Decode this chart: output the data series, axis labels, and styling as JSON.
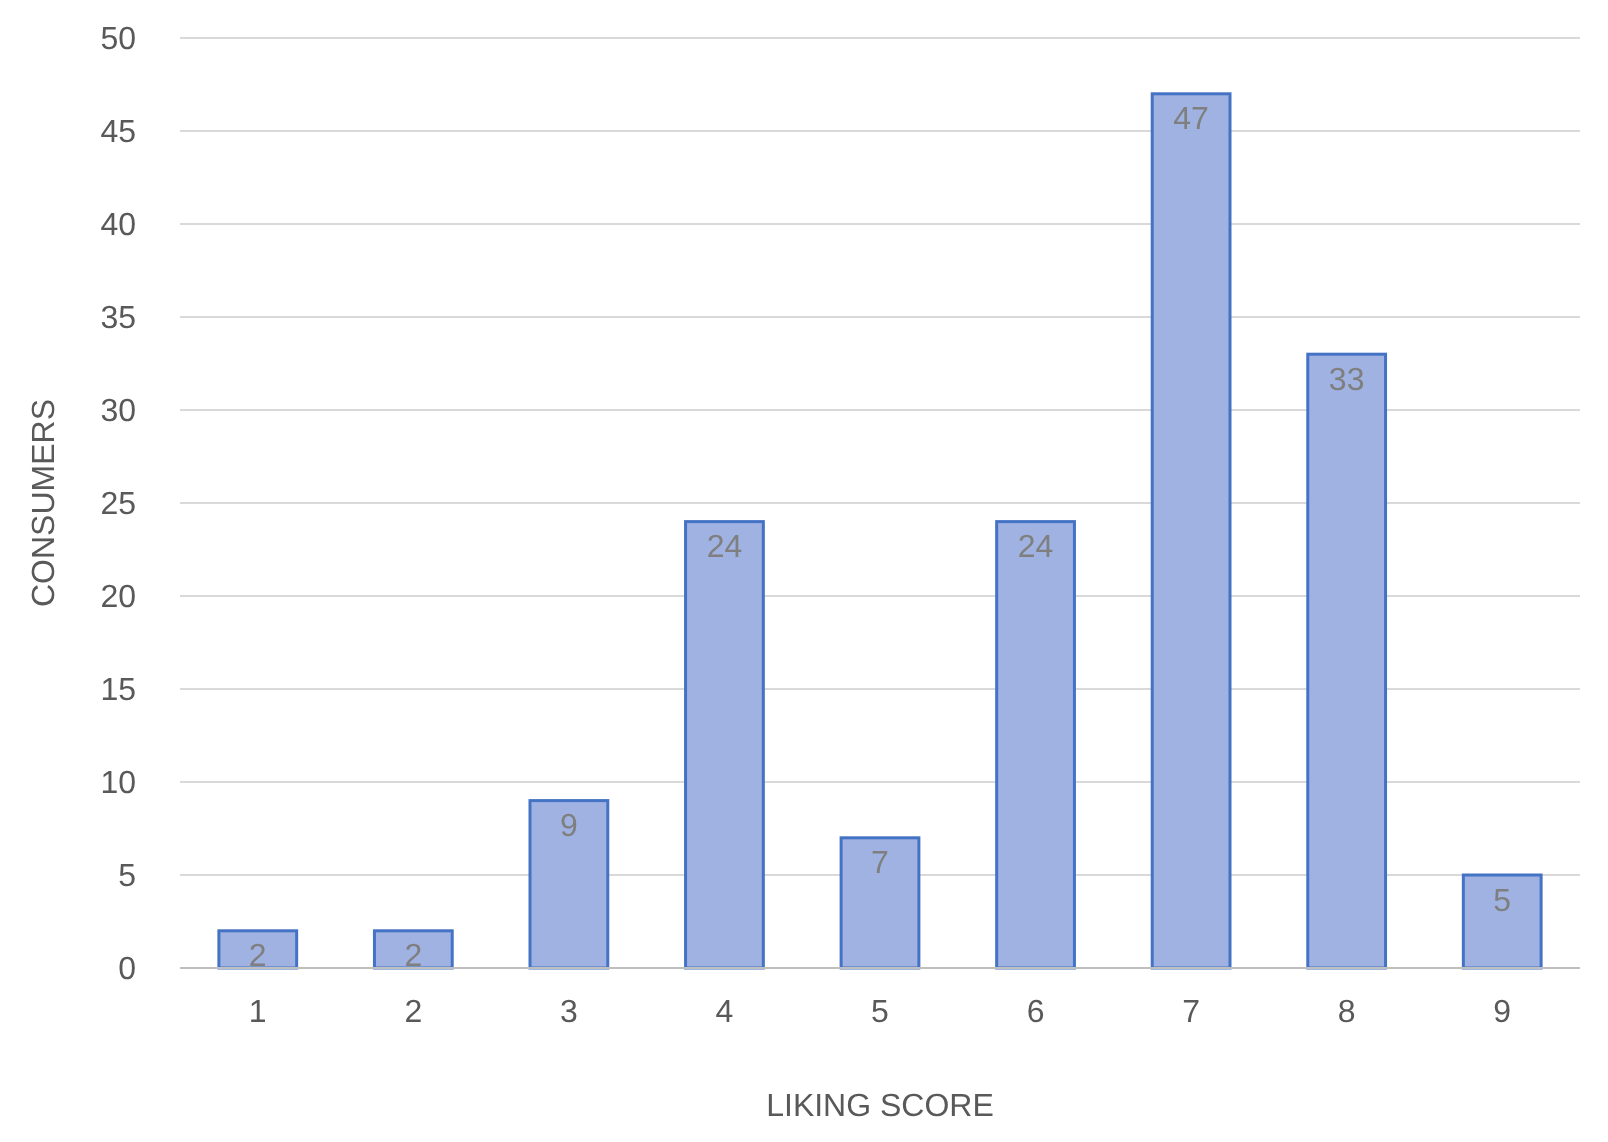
{
  "chart_data": {
    "type": "bar",
    "xlabel": "LIKING SCORE",
    "ylabel": "CONSUMERS",
    "categories": [
      "1",
      "2",
      "3",
      "4",
      "5",
      "6",
      "7",
      "8",
      "9"
    ],
    "values": [
      2,
      2,
      9,
      24,
      7,
      24,
      47,
      33,
      5
    ],
    "color": "#9fb2e2",
    "ylim": [
      0,
      50
    ],
    "yticks": [
      0,
      5,
      10,
      15,
      20,
      25,
      30,
      35,
      40,
      45,
      50
    ],
    "grid": "y",
    "data_labels": true
  }
}
